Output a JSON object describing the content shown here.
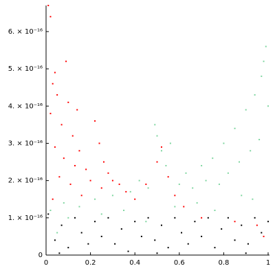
{
  "chart_data": {
    "type": "scatter",
    "xlim": [
      0,
      1
    ],
    "ylim": [
      0,
      6.7e-16
    ],
    "xticks": [
      0,
      0.2,
      0.4,
      0.6,
      0.8,
      1
    ],
    "yticks": [
      0,
      {
        "value": 1e-16,
        "label": "1. × 10⁻¹⁶"
      },
      {
        "value": 2e-16,
        "label": "2. × 10⁻¹⁶"
      },
      {
        "value": 3e-16,
        "label": "3. × 10⁻¹⁶"
      },
      {
        "value": 4e-16,
        "label": "4. × 10⁻¹⁶"
      },
      {
        "value": 5e-16,
        "label": "5. × 10⁻¹⁶"
      },
      {
        "value": 6e-16,
        "label": "6. × 10⁻¹⁶"
      }
    ],
    "grid": false,
    "series": [
      {
        "color": "#ff0000",
        "x": [
          0.01,
          0.02,
          0.03,
          0.05,
          0.02,
          0.07,
          0.1,
          0.12,
          0.04,
          0.08,
          0.15,
          0.18,
          0.22,
          0.24,
          0.26,
          0.28,
          0.3,
          0.33,
          0.36,
          0.06,
          0.11,
          0.14,
          0.2,
          0.09,
          0.04,
          0.16,
          0.25,
          0.4,
          0.45,
          0.5,
          0.52,
          0.55,
          0.58,
          0.62,
          0.7,
          0.85,
          0.95,
          0.98,
          0.03,
          0.13
        ],
        "values": [
          6.7e-16,
          6.4e-16,
          4.6e-16,
          4.3e-16,
          3.8e-16,
          3.5e-16,
          4.1e-16,
          3.2e-16,
          2.9e-16,
          2.6e-16,
          2.8e-16,
          2.3e-16,
          3.6e-16,
          3e-16,
          2.5e-16,
          2.2e-16,
          2e-16,
          1.9e-16,
          1.7e-16,
          2.1e-16,
          1.9e-16,
          3.9e-16,
          2e-16,
          5.2e-16,
          4.9e-16,
          1.6e-16,
          1.8e-16,
          1.5e-16,
          1.9e-16,
          2.5e-16,
          2.9e-16,
          2.1e-16,
          1.6e-16,
          1.3e-16,
          1e-16,
          9e-17,
          8e-17,
          5e-17,
          1.5e-16,
          2.4e-16
        ]
      },
      {
        "color": "#7fd6a0",
        "x": [
          0.02,
          0.08,
          0.15,
          0.22,
          0.3,
          0.38,
          0.42,
          0.46,
          0.49,
          0.5,
          0.52,
          0.54,
          0.56,
          0.6,
          0.63,
          0.66,
          0.7,
          0.72,
          0.75,
          0.78,
          0.8,
          0.82,
          0.85,
          0.87,
          0.9,
          0.92,
          0.94,
          0.96,
          0.97,
          0.98,
          0.99,
          1.0,
          0.88,
          0.68,
          0.58,
          0.35,
          0.25,
          0.1,
          0.05,
          0.45,
          0.76,
          0.93
        ],
        "values": [
          1.2e-16,
          1.4e-16,
          1.3e-16,
          1.5e-16,
          1.6e-16,
          1.7e-16,
          2e-16,
          1.8e-16,
          3.5e-16,
          3.2e-16,
          2.8e-16,
          2.4e-16,
          3e-16,
          1.9e-16,
          2.2e-16,
          1.8e-16,
          2.4e-16,
          2e-16,
          2.6e-16,
          1.9e-16,
          3e-16,
          2.2e-16,
          3.4e-16,
          2.5e-16,
          3.9e-16,
          2.8e-16,
          4.3e-16,
          3.1e-16,
          4.8e-16,
          5.2e-16,
          5.6e-16,
          4e-16,
          1.6e-16,
          1.4e-16,
          1.3e-16,
          1.2e-16,
          1.1e-16,
          1e-16,
          6e-17,
          9e-17,
          1.2e-16,
          1.5e-16
        ]
      },
      {
        "color": "#000000",
        "x": [
          0.01,
          0.04,
          0.07,
          0.1,
          0.13,
          0.16,
          0.19,
          0.22,
          0.25,
          0.28,
          0.31,
          0.34,
          0.37,
          0.4,
          0.43,
          0.46,
          0.49,
          0.52,
          0.55,
          0.58,
          0.61,
          0.64,
          0.67,
          0.7,
          0.73,
          0.76,
          0.79,
          0.82,
          0.85,
          0.88,
          0.91,
          0.94,
          0.97,
          1.0,
          0.06,
          0.5,
          0.9
        ],
        "values": [
          1.1e-16,
          4e-17,
          8e-17,
          2e-17,
          1e-16,
          6e-17,
          3e-17,
          9e-17,
          5e-17,
          1e-16,
          3e-17,
          7e-17,
          1e-17,
          9e-17,
          5e-17,
          1e-16,
          4e-17,
          8e-17,
          2e-17,
          1e-16,
          6e-17,
          3e-17,
          9e-17,
          5e-17,
          1e-16,
          2e-17,
          7e-17,
          1e-16,
          4e-17,
          8e-17,
          3e-17,
          1e-16,
          6e-17,
          9e-17,
          5e-18,
          5e-18,
          5e-18
        ]
      }
    ]
  }
}
